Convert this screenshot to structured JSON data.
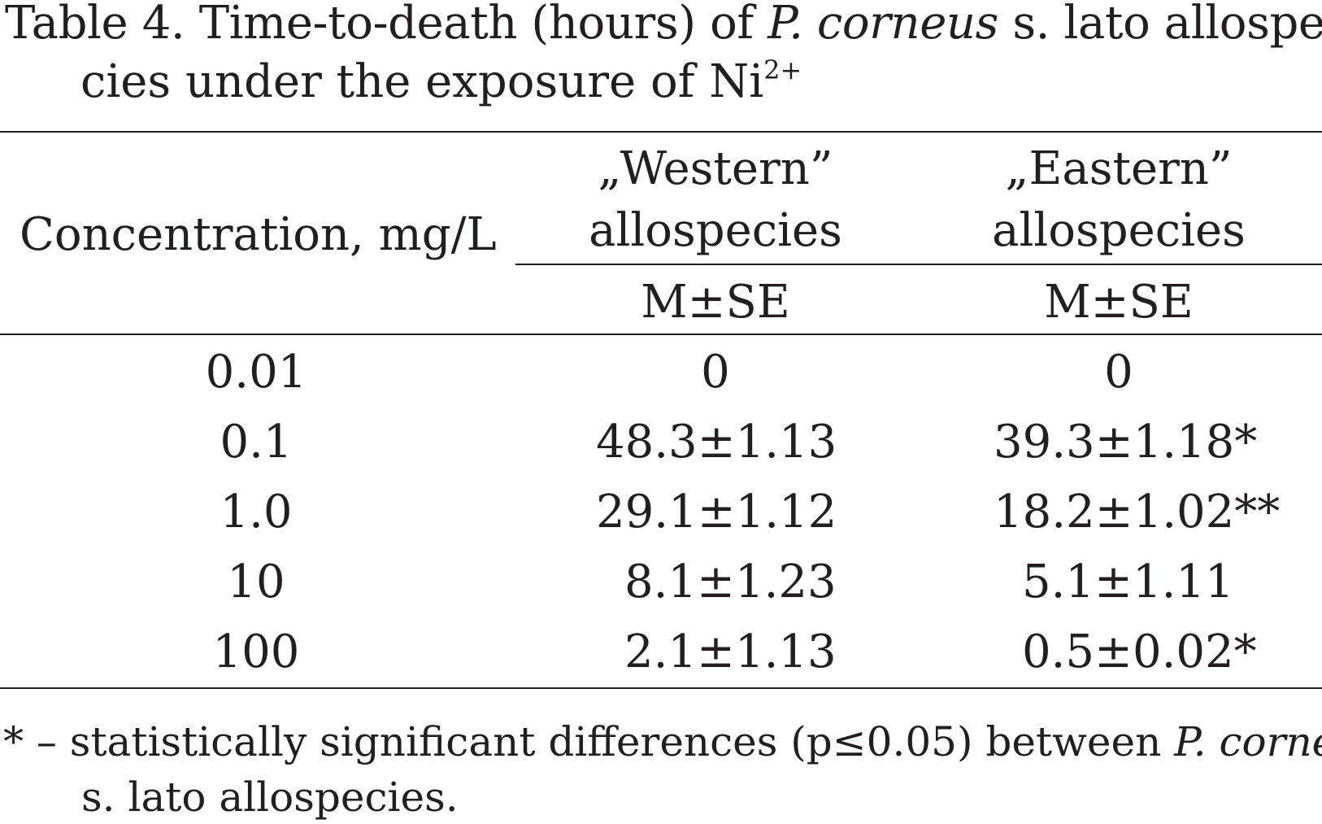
{
  "caption": {
    "line1_prefix": "Table 4. Time-to-death (hours) of ",
    "line1_species": "P. corneus",
    "line1_suffix": " s. lato allospe-",
    "line2_text": "cies under the exposure of Ni",
    "line2_sup": "2+"
  },
  "table": {
    "header": {
      "concentration": "Concentration, mg/L",
      "western_line1": "„Western”",
      "western_line2": "allospecies",
      "eastern_line1": "„Eastern”",
      "eastern_line2": "allospecies",
      "western_stat": "M±SE",
      "eastern_stat": "M±SE"
    },
    "rows": [
      {
        "concentration": "0.01",
        "western": "0",
        "eastern": "0"
      },
      {
        "concentration": "0.1",
        "western": "48.3±1.13",
        "eastern": "39.3±1.18*"
      },
      {
        "concentration": "1.0",
        "western": "29.1±1.12",
        "eastern": "18.2±1.02**"
      },
      {
        "concentration": "10",
        "western": "8.1±1.23",
        "eastern": "5.1±1.11"
      },
      {
        "concentration": "100",
        "western": "2.1±1.13",
        "eastern": "0.5±0.02*"
      }
    ]
  },
  "footnote": {
    "line1_prefix": "* – statistically significant differences (p≤0.05) between ",
    "line1_species": "P. corneus",
    "line2": "s. lato allospecies."
  }
}
